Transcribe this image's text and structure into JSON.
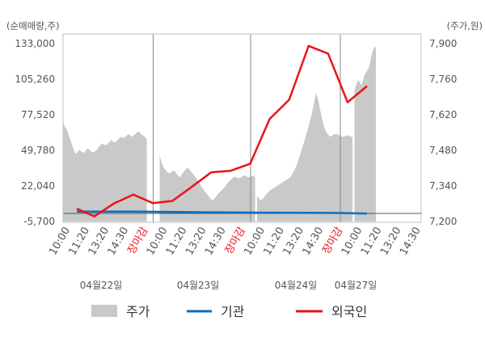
{
  "chart_data": {
    "type": "line",
    "y_left_unit": "(순매매량,주)",
    "y_right_unit": "(주가,원)",
    "y_left_ticks": [
      "133,000",
      "105,260",
      "77,520",
      "49,780",
      "22,040",
      "-5,700"
    ],
    "y_right_ticks": [
      "7,900",
      "7,760",
      "7,620",
      "7,480",
      "7,340",
      "7,200"
    ],
    "y_left_range": [
      -5700,
      133000
    ],
    "y_right_range": [
      7200,
      7900
    ],
    "x_tick_labels": [
      "10:00",
      "11:20",
      "13:20",
      "14:30",
      "장마감",
      "10:00",
      "11:20",
      "13:20",
      "14:30",
      "장마감",
      "10:00",
      "11:20",
      "13:20",
      "14:30",
      "장마감",
      "10:00",
      "11:20",
      "13:20",
      "14:30"
    ],
    "date_labels": [
      "04월22일",
      "04월23일",
      "04월24일",
      "04월27일"
    ],
    "legend": [
      "주가",
      "기관",
      "외국인"
    ],
    "colors": {
      "price_area": "#c9c9c9",
      "institution": "#0a6fbf",
      "foreign": "#e8141b",
      "closing_label": "#e8141b"
    },
    "price_samples_per_segment": 48,
    "price_series": [
      [
        7590,
        7570,
        7560,
        7540,
        7520,
        7500,
        7480,
        7465,
        7470,
        7480,
        7475,
        7468,
        7470,
        7480,
        7485,
        7478,
        7472,
        7470,
        7474,
        7480,
        7490,
        7498,
        7505,
        7500,
        7498,
        7502,
        7510,
        7518,
        7512,
        7508,
        7515,
        7522,
        7528,
        7530,
        7526,
        7530,
        7538,
        7540,
        7535,
        7530,
        7538,
        7545,
        7550,
        7548,
        7540,
        7535,
        7530,
        7520
      ],
      [
        7460,
        7430,
        7410,
        7400,
        7392,
        7388,
        7395,
        7400,
        7390,
        7380,
        7372,
        7385,
        7395,
        7405,
        7410,
        7400,
        7390,
        7380,
        7370,
        7358,
        7345,
        7330,
        7320,
        7310,
        7300,
        7290,
        7282,
        7290,
        7300,
        7310,
        7318,
        7325,
        7335,
        7345,
        7355,
        7362,
        7370,
        7375,
        7372,
        7368,
        7372,
        7378,
        7380,
        7375,
        7372,
        7376,
        7380,
        7372
      ],
      [
        7300,
        7290,
        7282,
        7290,
        7300,
        7310,
        7318,
        7325,
        7330,
        7335,
        7340,
        7345,
        7350,
        7355,
        7360,
        7365,
        7370,
        7380,
        7395,
        7410,
        7430,
        7455,
        7480,
        7505,
        7535,
        7560,
        7590,
        7620,
        7660,
        7700,
        7680,
        7640,
        7600,
        7570,
        7550,
        7540,
        7530,
        7535,
        7540,
        7542,
        7538,
        7535,
        7530,
        7532,
        7536,
        7535,
        7532,
        7530
      ],
      [
        7710,
        7730,
        7745,
        7752,
        7740,
        7730,
        7750,
        7770,
        7780,
        7790,
        7800,
        7820,
        7850,
        7870,
        7878,
        7882
      ]
    ],
    "foreign_series": [
      {
        "x_index": 0.35,
        "value": 7250
      },
      {
        "x_index": 1.25,
        "value": 7220
      },
      {
        "x_index": 2.25,
        "value": 7270
      },
      {
        "x_index": 3.25,
        "value": 7305
      },
      {
        "x_index": 4.25,
        "value": 7272
      },
      {
        "x_index": 5.25,
        "value": 7280
      },
      {
        "x_index": 6.25,
        "value": 7335
      },
      {
        "x_index": 7.25,
        "value": 7392
      },
      {
        "x_index": 8.25,
        "value": 7398
      },
      {
        "x_index": 9.25,
        "value": 7425
      },
      {
        "x_index": 10.25,
        "value": 7600
      },
      {
        "x_index": 11.25,
        "value": 7675
      },
      {
        "x_index": 12.25,
        "value": 7885
      },
      {
        "x_index": 13.25,
        "value": 7855
      },
      {
        "x_index": 14.25,
        "value": 7665
      },
      {
        "x_index": 15.25,
        "value": 7728
      }
    ],
    "institution_series": [
      {
        "x_index": 0.35,
        "value": 2000
      },
      {
        "x_index": 3.5,
        "value": 1900
      },
      {
        "x_index": 7.0,
        "value": 1400
      },
      {
        "x_index": 10.5,
        "value": 1100
      },
      {
        "x_index": 13.5,
        "value": 900
      },
      {
        "x_index": 15.25,
        "value": 500
      }
    ],
    "grid": true,
    "legend_position": "bottom"
  }
}
